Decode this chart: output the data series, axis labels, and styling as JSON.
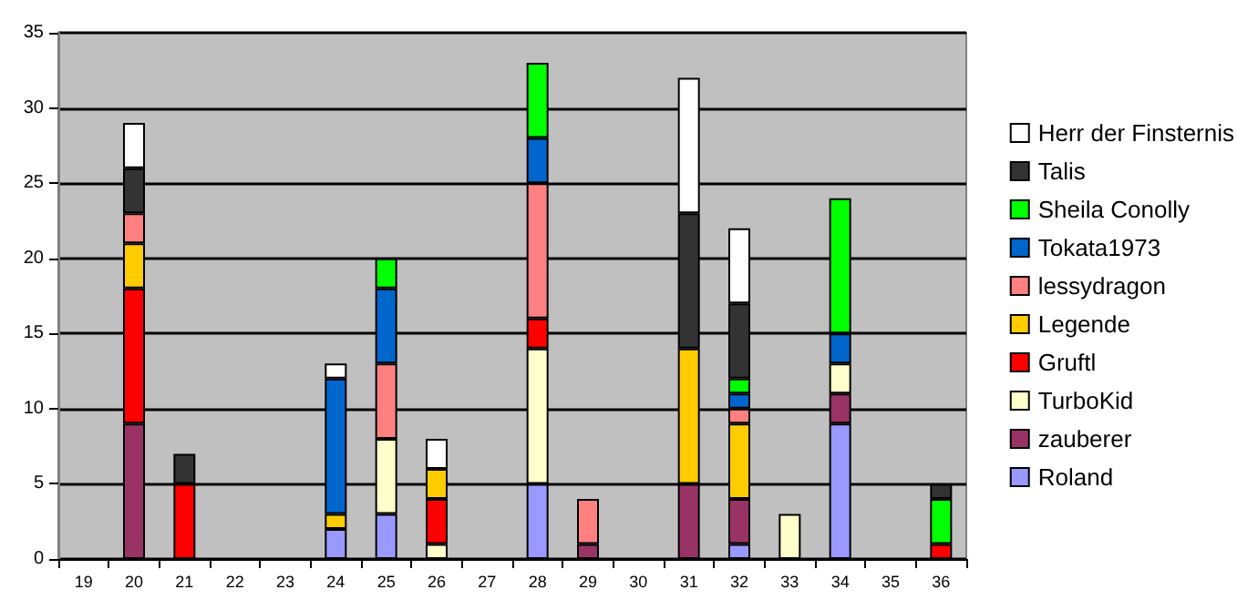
{
  "chart_data": {
    "type": "bar",
    "stacked": true,
    "grid": "y",
    "legend": "right",
    "categories": [
      "19",
      "20",
      "21",
      "22",
      "23",
      "24",
      "25",
      "26",
      "27",
      "28",
      "29",
      "30",
      "31",
      "32",
      "33",
      "34",
      "35",
      "36"
    ],
    "ylim": [
      0,
      35
    ],
    "yticks": [
      0,
      5,
      10,
      15,
      20,
      25,
      30,
      35
    ],
    "series": [
      {
        "name": "Roland",
        "color": "#9999ff",
        "values": [
          null,
          null,
          null,
          null,
          null,
          2,
          3,
          null,
          null,
          5,
          null,
          null,
          null,
          1,
          null,
          9,
          null,
          null
        ]
      },
      {
        "name": "zauberer",
        "color": "#993366",
        "values": [
          null,
          9,
          null,
          null,
          null,
          null,
          null,
          null,
          null,
          null,
          1,
          null,
          5,
          3,
          null,
          2,
          null,
          null
        ]
      },
      {
        "name": "TurboKid",
        "color": "#ffffcc",
        "values": [
          null,
          null,
          null,
          null,
          null,
          null,
          5,
          1,
          null,
          9,
          null,
          null,
          null,
          null,
          3,
          2,
          null,
          null
        ]
      },
      {
        "name": "Gruftl",
        "color": "#ff0000",
        "values": [
          null,
          9,
          5,
          null,
          null,
          null,
          null,
          3,
          null,
          2,
          null,
          null,
          null,
          null,
          null,
          null,
          null,
          1
        ]
      },
      {
        "name": "Legende",
        "color": "#ffcc00",
        "values": [
          null,
          3,
          null,
          null,
          null,
          1,
          null,
          2,
          null,
          null,
          null,
          null,
          9,
          5,
          null,
          null,
          null,
          null
        ]
      },
      {
        "name": "lessydragon",
        "color": "#ff8080",
        "values": [
          null,
          2,
          null,
          null,
          null,
          null,
          5,
          null,
          null,
          9,
          3,
          null,
          null,
          1,
          null,
          null,
          null,
          null
        ]
      },
      {
        "name": "Tokata1973",
        "color": "#0066cc",
        "values": [
          null,
          null,
          null,
          null,
          null,
          9,
          5,
          null,
          null,
          3,
          null,
          null,
          null,
          1,
          null,
          2,
          null,
          null
        ]
      },
      {
        "name": "Sheila Conolly",
        "color": "#00ff00",
        "values": [
          null,
          null,
          null,
          null,
          null,
          null,
          2,
          null,
          null,
          5,
          null,
          null,
          null,
          1,
          null,
          9,
          null,
          3
        ]
      },
      {
        "name": "Talis",
        "color": "#333333",
        "values": [
          null,
          3,
          2,
          null,
          null,
          null,
          null,
          null,
          null,
          null,
          null,
          null,
          9,
          5,
          null,
          null,
          null,
          1
        ]
      },
      {
        "name": "Herr der Finsternis",
        "color": "#ffffff",
        "values": [
          null,
          3,
          null,
          null,
          null,
          1,
          null,
          2,
          null,
          null,
          null,
          null,
          9,
          5,
          null,
          null,
          null,
          null
        ]
      }
    ]
  }
}
